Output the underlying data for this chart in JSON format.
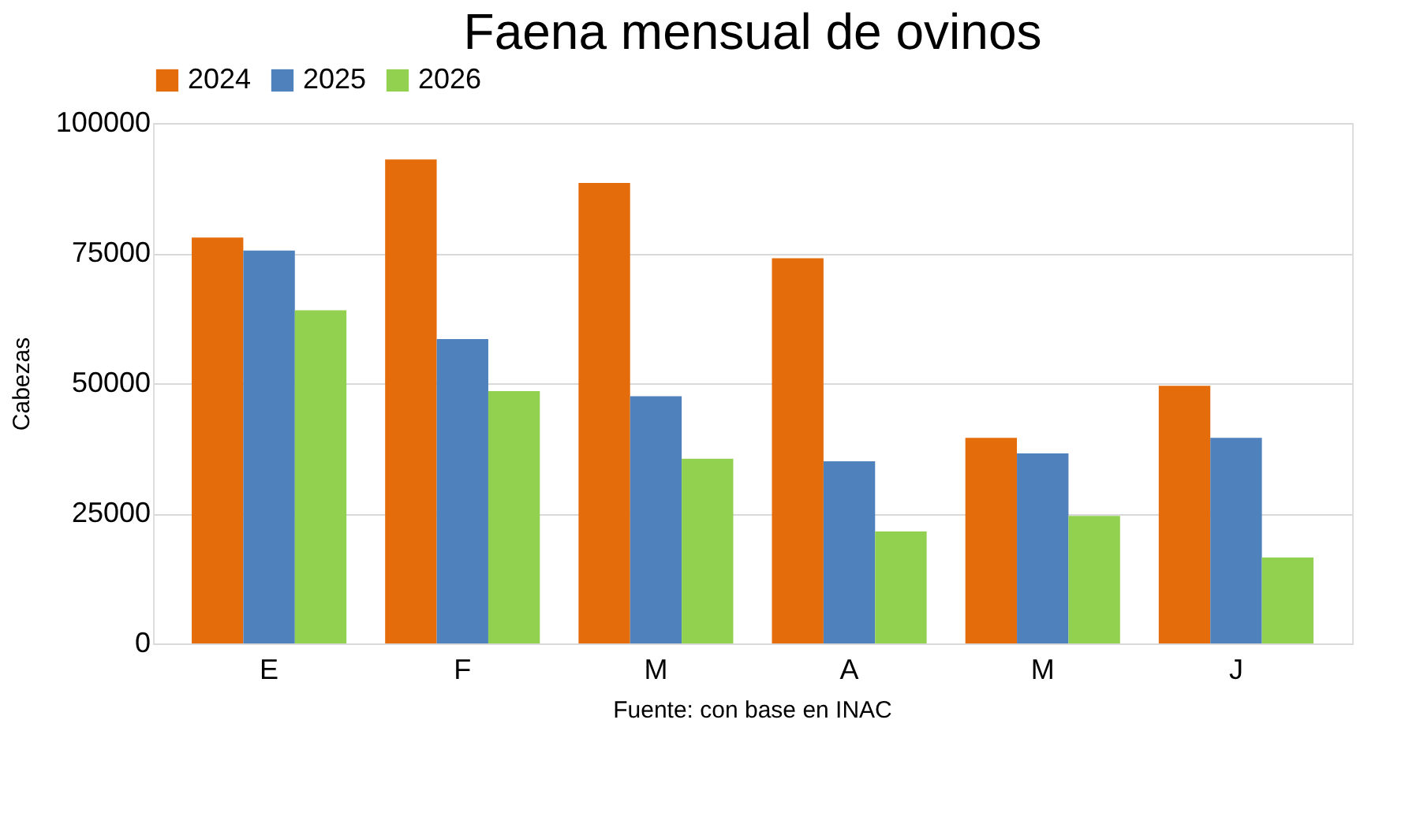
{
  "chart_data": {
    "type": "bar",
    "title": "Faena mensual de ovinos",
    "ylabel": "Cabezas",
    "categories": [
      "E",
      "F",
      "M",
      "A",
      "M",
      "J"
    ],
    "series": [
      {
        "name": "2024",
        "color": "#e46c0a",
        "values": [
          78000,
          93000,
          88500,
          74000,
          39500,
          49500
        ]
      },
      {
        "name": "2025",
        "color": "#4f81bd",
        "values": [
          75500,
          58500,
          47500,
          35000,
          36500,
          39500
        ]
      },
      {
        "name": "2026",
        "color": "#92d050",
        "values": [
          64000,
          48500,
          35500,
          21500,
          24500,
          16500
        ]
      }
    ],
    "ylim": [
      0,
      100000
    ],
    "yticks": [
      0,
      25000,
      50000,
      75000,
      100000
    ],
    "grid": "y",
    "legend": "top",
    "annotations": [
      "Fuente: con base en INAC"
    ]
  }
}
